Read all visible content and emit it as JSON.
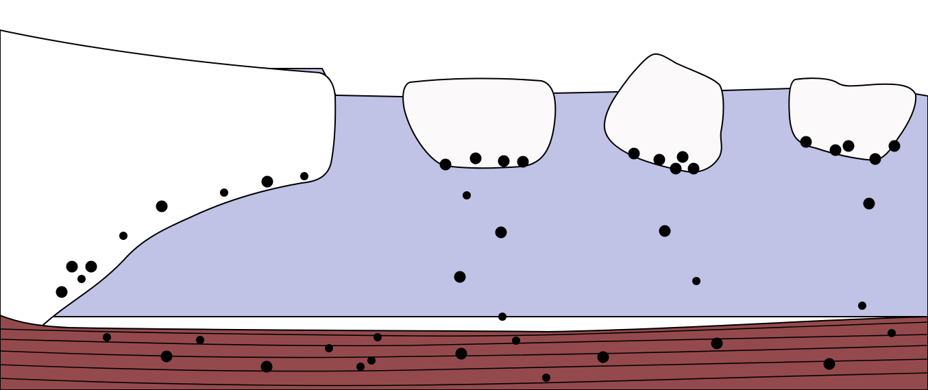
{
  "colors": {
    "background": "#ffffff",
    "water": "#c0c3e6",
    "sediment": "#944a4d",
    "ice": "#fbf9fa",
    "particle": "#000000",
    "outline": "#000000"
  },
  "elements": {
    "ice_shelf": "ice-shelf",
    "icebergs": [
      "iceberg-1",
      "iceberg-2",
      "iceberg-3"
    ],
    "sediment_layers": 5,
    "particles_on_ice_shelf": 10,
    "particles_on_icebergs": 15,
    "particles_in_water": 9,
    "particles_in_sediment": 16
  }
}
